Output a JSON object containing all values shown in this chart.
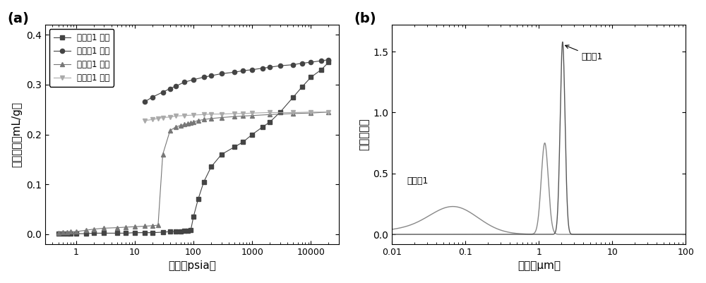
{
  "fig_width": 10.0,
  "fig_height": 4.01,
  "panel_a": {
    "label": "(a)",
    "xlabel": "压强（psia）",
    "ylabel": "吸脱附量（mL/g）",
    "xlim": [
      0.3,
      30000
    ],
    "ylim": [
      -0.02,
      0.42
    ],
    "yticks": [
      0.0,
      0.1,
      0.2,
      0.3,
      0.4
    ],
    "xticks": [
      1,
      10,
      100,
      1000,
      10000
    ],
    "xticklabels": [
      "1",
      "10",
      "100",
      "1000",
      "10000"
    ],
    "series": {
      "ex1_ads": {
        "label": "实施例1 吸附",
        "marker": "s",
        "color": "#444444",
        "markersize": 4.5
      },
      "ex1_des": {
        "label": "实施例1 脱附",
        "marker": "o",
        "color": "#444444",
        "markersize": 4.5
      },
      "comp1_ads": {
        "label": "对比例1 吸附",
        "marker": "^",
        "color": "#777777",
        "markersize": 4.5
      },
      "comp1_des": {
        "label": "对比例1 脱附",
        "marker": "v",
        "color": "#aaaaaa",
        "markersize": 4.5
      }
    }
  },
  "panel_b": {
    "label": "(b)",
    "xlabel": "孔径（μm）",
    "ylabel": "吸附量微分",
    "xlim": [
      0.01,
      100
    ],
    "ylim": [
      -0.08,
      1.72
    ],
    "yticks": [
      0.0,
      0.5,
      1.0,
      1.5
    ],
    "xticks": [
      0.01,
      0.1,
      1,
      10,
      100
    ],
    "xticklabels": [
      "0.01",
      "0.1",
      "1",
      "10",
      "100"
    ],
    "annotation_ex1": "实施例1",
    "annotation_comp1": "对比例1",
    "color_ex1": "#888888",
    "color_comp1": "#555555"
  }
}
